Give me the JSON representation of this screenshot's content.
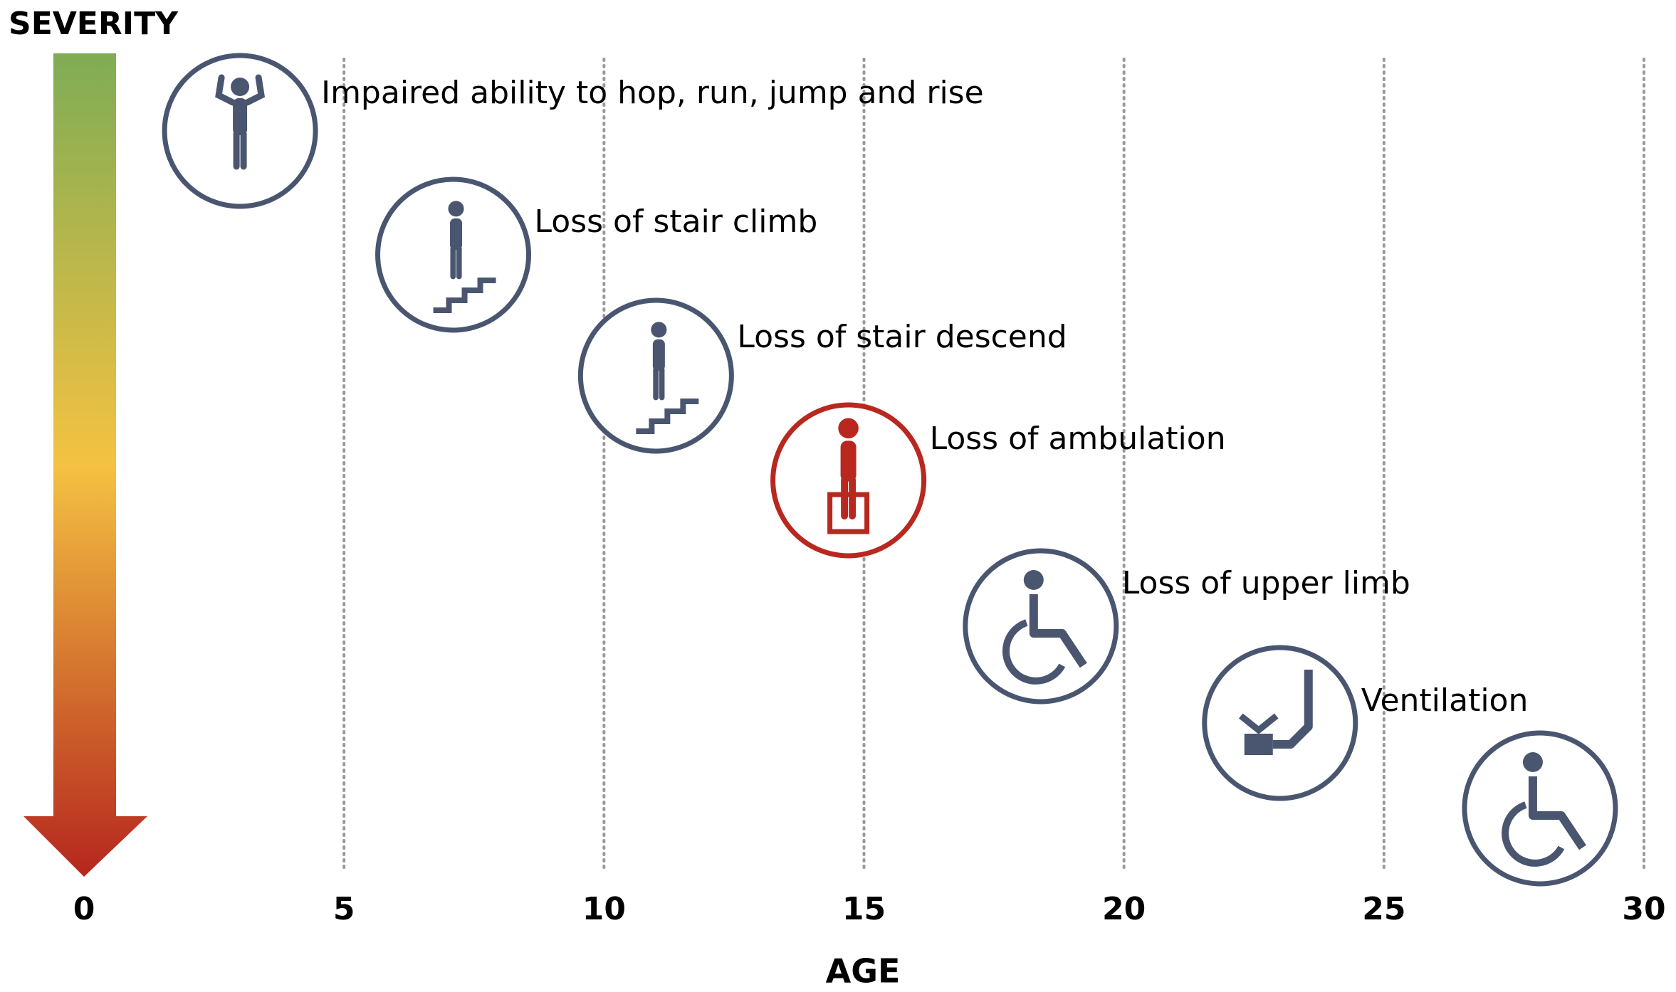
{
  "chart_data": {
    "type": "timeline",
    "ylabel": "SEVERITY",
    "xlabel": "AGE",
    "xlim": [
      0,
      30
    ],
    "xticks": [
      0,
      5,
      10,
      15,
      20,
      25,
      30
    ],
    "grid": true,
    "categories": [
      "Impaired ability to hop, run, jump and rise",
      "Loss of stair climb",
      "Loss of stair descend",
      "Loss of ambulation",
      "Loss of upper limb",
      "Ventilation",
      null
    ],
    "x": [
      3,
      7.1,
      11,
      14.7,
      18.4,
      23,
      28
    ],
    "colors": [
      "#4a5670",
      "#4a5670",
      "#4a5670",
      "#b8281f",
      "#4a5670",
      "#4a5670",
      "#4a5670"
    ]
  }
}
